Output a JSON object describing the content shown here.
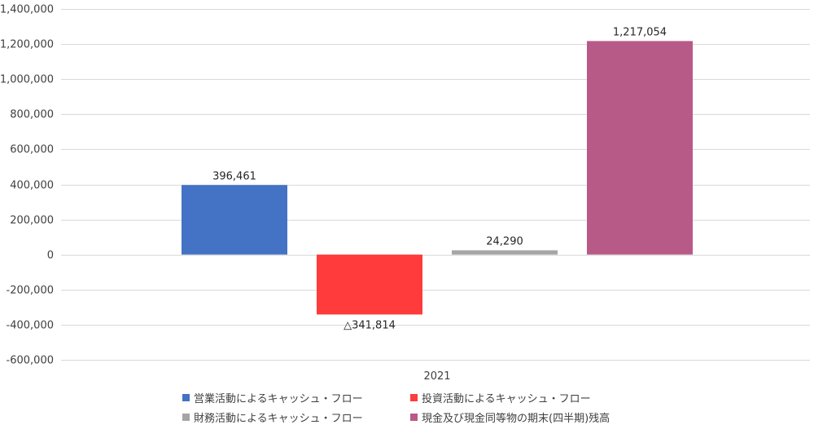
{
  "chart_data": {
    "type": "bar",
    "categories": [
      "2021"
    ],
    "series": [
      {
        "name": "営業活動によるキャッシュ・フロー",
        "values": [
          396461
        ],
        "label": "396,461",
        "color": "#4472C4"
      },
      {
        "name": "投資活動によるキャッシュ・フロー",
        "values": [
          -341814
        ],
        "label": "△341,814",
        "color": "#FF3B3B"
      },
      {
        "name": "財務活動によるキャッシュ・フロー",
        "values": [
          24290
        ],
        "label": "24,290",
        "color": "#A5A5A5"
      },
      {
        "name": "現金及び現金同等物の期末(四半期)残高",
        "values": [
          1217054
        ],
        "label": "1,217,054",
        "color": "#B85A87"
      }
    ],
    "ylim": [
      -600000,
      1400000
    ],
    "yticks": [
      -600000,
      -400000,
      -200000,
      0,
      200000,
      400000,
      600000,
      800000,
      1000000,
      1200000,
      1400000
    ],
    "ytick_labels": [
      "-600,000",
      "-400,000",
      "-200,000",
      "0",
      "200,000",
      "400,000",
      "600,000",
      "800,000",
      "1,000,000",
      "1,200,000",
      "1,400,000"
    ],
    "grid": true,
    "legend_position": "bottom"
  }
}
